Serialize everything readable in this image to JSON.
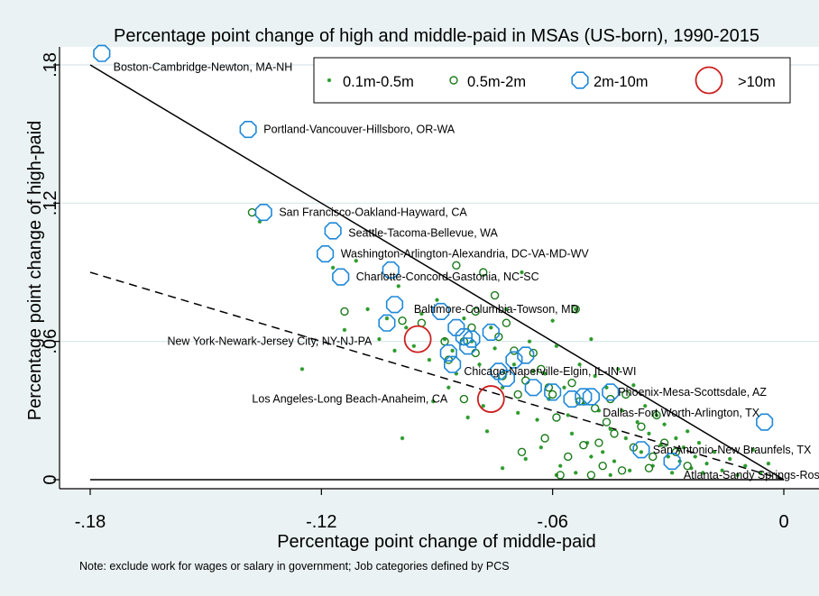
{
  "chart_data": {
    "type": "scatter",
    "title": "Percentage point change of high and middle-paid in MSAs (US-born), 1990-2015",
    "xlabel": "Percentage point change of middle-paid",
    "ylabel": "Percentage point change of high-paid",
    "note": "Note: exclude work for wages or salary in government; Job categories defined by PCS",
    "xlim": [
      -0.18,
      0.0
    ],
    "ylim": [
      0.0,
      0.18
    ],
    "xticks": [
      {
        "v": -0.18,
        "label": "-.18"
      },
      {
        "v": -0.12,
        "label": "-.12"
      },
      {
        "v": -0.06,
        "label": "-.06"
      },
      {
        "v": 0.0,
        "label": "0"
      }
    ],
    "yticks": [
      {
        "v": 0.0,
        "label": "0"
      },
      {
        "v": 0.06,
        "label": ".06"
      },
      {
        "v": 0.12,
        "label": ".12"
      },
      {
        "v": 0.18,
        "label": ".18"
      }
    ],
    "grid": "horizontal",
    "legend": {
      "position": "top-right",
      "entries": [
        {
          "label": "0.1m-0.5m",
          "marker": "star",
          "color": "#2a9a2a"
        },
        {
          "label": "0.5m-2m",
          "marker": "circle-small",
          "color": "#1a7a1a"
        },
        {
          "label": "2m-10m",
          "marker": "octagon",
          "color": "#1e88d8"
        },
        {
          "label": ">10m",
          "marker": "circle-large",
          "color": "#cc2020"
        }
      ]
    },
    "reference_lines": [
      {
        "style": "solid",
        "from": [
          -0.18,
          0.18
        ],
        "to": [
          0.0,
          0.0
        ]
      },
      {
        "style": "dashed",
        "from": [
          -0.18,
          0.09
        ],
        "to": [
          0.0,
          0.0
        ]
      },
      {
        "style": "solid",
        "from": [
          -0.18,
          0.0
        ],
        "to": [
          0.0,
          0.0
        ]
      }
    ],
    "series": [
      {
        "name": "0.1m-0.5m",
        "marker": "star",
        "color": "#2a9a2a",
        "points": [
          [
            -0.136,
            0.112
          ],
          [
            -0.125,
            0.048
          ],
          [
            -0.117,
            0.092
          ],
          [
            -0.114,
            0.065
          ],
          [
            -0.111,
            0.095
          ],
          [
            -0.108,
            0.074
          ],
          [
            -0.105,
            0.061
          ],
          [
            -0.103,
            0.07
          ],
          [
            -0.101,
            0.056
          ],
          [
            -0.1,
            0.084
          ],
          [
            -0.098,
            0.066
          ],
          [
            -0.096,
            0.058
          ],
          [
            -0.094,
            0.072
          ],
          [
            -0.099,
            0.018
          ],
          [
            -0.092,
            0.052
          ],
          [
            -0.09,
            0.078
          ],
          [
            -0.088,
            0.061
          ],
          [
            -0.086,
            0.056
          ],
          [
            -0.085,
            0.046
          ],
          [
            -0.083,
            0.07
          ],
          [
            -0.081,
            0.06
          ],
          [
            -0.079,
            0.05
          ],
          [
            -0.078,
            0.032
          ],
          [
            -0.076,
            0.066
          ],
          [
            -0.075,
            0.057
          ],
          [
            -0.073,
            0.04
          ],
          [
            -0.072,
            0.074
          ],
          [
            -0.07,
            0.05
          ],
          [
            -0.069,
            0.029
          ],
          [
            -0.068,
            0.09
          ],
          [
            -0.066,
            0.06
          ],
          [
            -0.065,
            0.047
          ],
          [
            -0.064,
            0.026
          ],
          [
            -0.062,
            0.046
          ],
          [
            -0.061,
            0.035
          ],
          [
            -0.06,
            0.069
          ],
          [
            -0.059,
            0.058
          ],
          [
            -0.057,
            0.04
          ],
          [
            -0.056,
            0.028
          ],
          [
            -0.055,
            0.02
          ],
          [
            -0.054,
            0.074
          ],
          [
            -0.053,
            0.05
          ],
          [
            -0.052,
            0.033
          ],
          [
            -0.051,
            0.016
          ],
          [
            -0.05,
            0.061
          ],
          [
            -0.049,
            0.045
          ],
          [
            -0.048,
            0.03
          ],
          [
            -0.047,
            0.012
          ],
          [
            -0.046,
            0.04
          ],
          [
            -0.045,
            0.022
          ],
          [
            -0.044,
            0.008
          ],
          [
            -0.043,
            0.048
          ],
          [
            -0.042,
            0.03
          ],
          [
            -0.041,
            0.018
          ],
          [
            -0.04,
            0.004
          ],
          [
            -0.039,
            0.041
          ],
          [
            -0.038,
            0.025
          ],
          [
            -0.037,
            0.012
          ],
          [
            -0.036,
            0.032
          ],
          [
            -0.035,
            0.02
          ],
          [
            -0.034,
            0.006
          ],
          [
            -0.033,
            0.028
          ],
          [
            -0.032,
            0.015
          ],
          [
            -0.031,
            0.024
          ],
          [
            -0.03,
            0.01
          ],
          [
            -0.029,
            0.003
          ],
          [
            -0.028,
            0.018
          ],
          [
            -0.027,
            0.008
          ],
          [
            -0.026,
            0.014
          ],
          [
            -0.025,
            0.021
          ],
          [
            -0.024,
            0.005
          ],
          [
            -0.023,
            0.01
          ],
          [
            -0.022,
            0.016
          ],
          [
            -0.021,
            0.003
          ],
          [
            -0.02,
            0.007
          ],
          [
            -0.018,
            0.012
          ],
          [
            -0.016,
            0.004
          ],
          [
            -0.014,
            0.009
          ],
          [
            -0.012,
            0.002
          ],
          [
            -0.01,
            0.006
          ],
          [
            -0.008,
            0.013
          ],
          [
            -0.006,
            0.003
          ],
          [
            -0.004,
            0.007
          ],
          [
            -0.073,
            0.005
          ],
          [
            -0.067,
            0.009
          ],
          [
            -0.063,
            0.014
          ],
          [
            -0.058,
            0.006
          ],
          [
            -0.054,
            0.003
          ],
          [
            -0.05,
            0.01
          ],
          [
            -0.087,
            0.04
          ],
          [
            -0.091,
            0.034
          ],
          [
            -0.082,
            0.027
          ],
          [
            -0.077,
            0.021
          ],
          [
            -0.059,
            0.002
          ],
          [
            -0.045,
            0.002
          ]
        ]
      },
      {
        "name": "0.5m-2m",
        "marker": "circle-small",
        "color": "#1a7a1a",
        "points": [
          [
            -0.138,
            0.116
          ],
          [
            -0.114,
            0.073
          ],
          [
            -0.099,
            0.069
          ],
          [
            -0.094,
            0.068
          ],
          [
            -0.088,
            0.06
          ],
          [
            -0.087,
            0.052
          ],
          [
            -0.085,
            0.093
          ],
          [
            -0.083,
            0.06
          ],
          [
            -0.081,
            0.066
          ],
          [
            -0.08,
            0.073
          ],
          [
            -0.08,
            0.055
          ],
          [
            -0.078,
            0.09
          ],
          [
            -0.075,
            0.08
          ],
          [
            -0.074,
            0.062
          ],
          [
            -0.073,
            0.045
          ],
          [
            -0.072,
            0.068
          ],
          [
            -0.07,
            0.056
          ],
          [
            -0.069,
            0.037
          ],
          [
            -0.068,
            0.012
          ],
          [
            -0.067,
            0.043
          ],
          [
            -0.065,
            0.055
          ],
          [
            -0.063,
            0.048
          ],
          [
            -0.062,
            0.018
          ],
          [
            -0.061,
            0.04
          ],
          [
            -0.06,
            0.037
          ],
          [
            -0.059,
            0.027
          ],
          [
            -0.058,
            0.002
          ],
          [
            -0.056,
            0.01
          ],
          [
            -0.055,
            0.042
          ],
          [
            -0.054,
            0.074
          ],
          [
            -0.053,
            0.034
          ],
          [
            -0.052,
            0.015
          ],
          [
            -0.05,
            0.002
          ],
          [
            -0.049,
            0.031
          ],
          [
            -0.048,
            0.016
          ],
          [
            -0.047,
            0.006
          ],
          [
            -0.046,
            0.025
          ],
          [
            -0.045,
            0.035
          ],
          [
            -0.044,
            0.02
          ],
          [
            -0.042,
            0.004
          ],
          [
            -0.041,
            0.037
          ],
          [
            -0.039,
            0.014
          ],
          [
            -0.037,
            0.023
          ],
          [
            -0.035,
            0.005
          ],
          [
            -0.034,
            0.01
          ],
          [
            -0.033,
            0.028
          ],
          [
            -0.031,
            0.016
          ],
          [
            -0.028,
            0.012
          ],
          [
            -0.025,
            0.006
          ],
          [
            -0.083,
            0.035
          ]
        ]
      },
      {
        "name": "2m-10m",
        "marker": "octagon",
        "color": "#1e88d8",
        "points": [
          [
            -0.177,
            0.185
          ],
          [
            -0.139,
            0.152
          ],
          [
            -0.135,
            0.116
          ],
          [
            -0.117,
            0.108
          ],
          [
            -0.119,
            0.098
          ],
          [
            -0.115,
            0.088
          ],
          [
            -0.102,
            0.091
          ],
          [
            -0.101,
            0.076
          ],
          [
            -0.103,
            0.068
          ],
          [
            -0.089,
            0.073
          ],
          [
            -0.085,
            0.066
          ],
          [
            -0.083,
            0.062
          ],
          [
            -0.081,
            0.061
          ],
          [
            -0.082,
            0.058
          ],
          [
            -0.087,
            0.055
          ],
          [
            -0.086,
            0.05
          ],
          [
            -0.076,
            0.064
          ],
          [
            -0.074,
            0.047
          ],
          [
            -0.072,
            0.044
          ],
          [
            -0.07,
            0.052
          ],
          [
            -0.065,
            0.04
          ],
          [
            -0.06,
            0.038
          ],
          [
            -0.052,
            0.036
          ],
          [
            -0.05,
            0.036
          ],
          [
            -0.045,
            0.038
          ],
          [
            -0.037,
            0.013
          ],
          [
            -0.029,
            0.008
          ],
          [
            -0.005,
            0.025
          ],
          [
            -0.067,
            0.054
          ],
          [
            -0.055,
            0.035
          ]
        ]
      },
      {
        "name": ">10m",
        "marker": "circle-large",
        "color": "#cc2020",
        "points": [
          [
            -0.095,
            0.061
          ],
          [
            -0.076,
            0.035
          ]
        ]
      }
    ],
    "annotations": [
      {
        "text": "Boston-Cambridge-Newton, MA-NH",
        "x": -0.174,
        "y": 0.179
      },
      {
        "text": "Portland-Vancouver-Hillsboro, OR-WA",
        "x": -0.135,
        "y": 0.152
      },
      {
        "text": "San Francisco-Oakland-Hayward, CA",
        "x": -0.131,
        "y": 0.116
      },
      {
        "text": "Seattle-Tacoma-Bellevue, WA",
        "x": -0.113,
        "y": 0.107
      },
      {
        "text": "Washington-Arlington-Alexandria, DC-VA-MD-WV",
        "x": -0.115,
        "y": 0.098
      },
      {
        "text": "Charlotte-Concord-Gastonia, NC-SC",
        "x": -0.111,
        "y": 0.088
      },
      {
        "text": "Baltimore-Columbia-Towson, MD",
        "x": -0.096,
        "y": 0.074
      },
      {
        "text": "New York-Newark-Jersey City, NY-NJ-PA",
        "x": -0.16,
        "y": 0.06
      },
      {
        "text": "Chicago-Naperville-Elgin, IL-IN-WI",
        "x": -0.083,
        "y": 0.047
      },
      {
        "text": "Los Angeles-Long Beach-Anaheim, CA",
        "x": -0.138,
        "y": 0.035
      },
      {
        "text": "Phoenix-Mesa-Scottsdale, AZ",
        "x": -0.043,
        "y": 0.038
      },
      {
        "text": "Dallas-Fort Worth-Arlington, TX",
        "x": -0.047,
        "y": 0.029
      },
      {
        "text": "San Antonio-New Braunfels, TX",
        "x": -0.034,
        "y": 0.013
      },
      {
        "text": "Atlanta-Sandy Springs-Roswell, GA",
        "x": -0.026,
        "y": 0.002
      }
    ]
  }
}
